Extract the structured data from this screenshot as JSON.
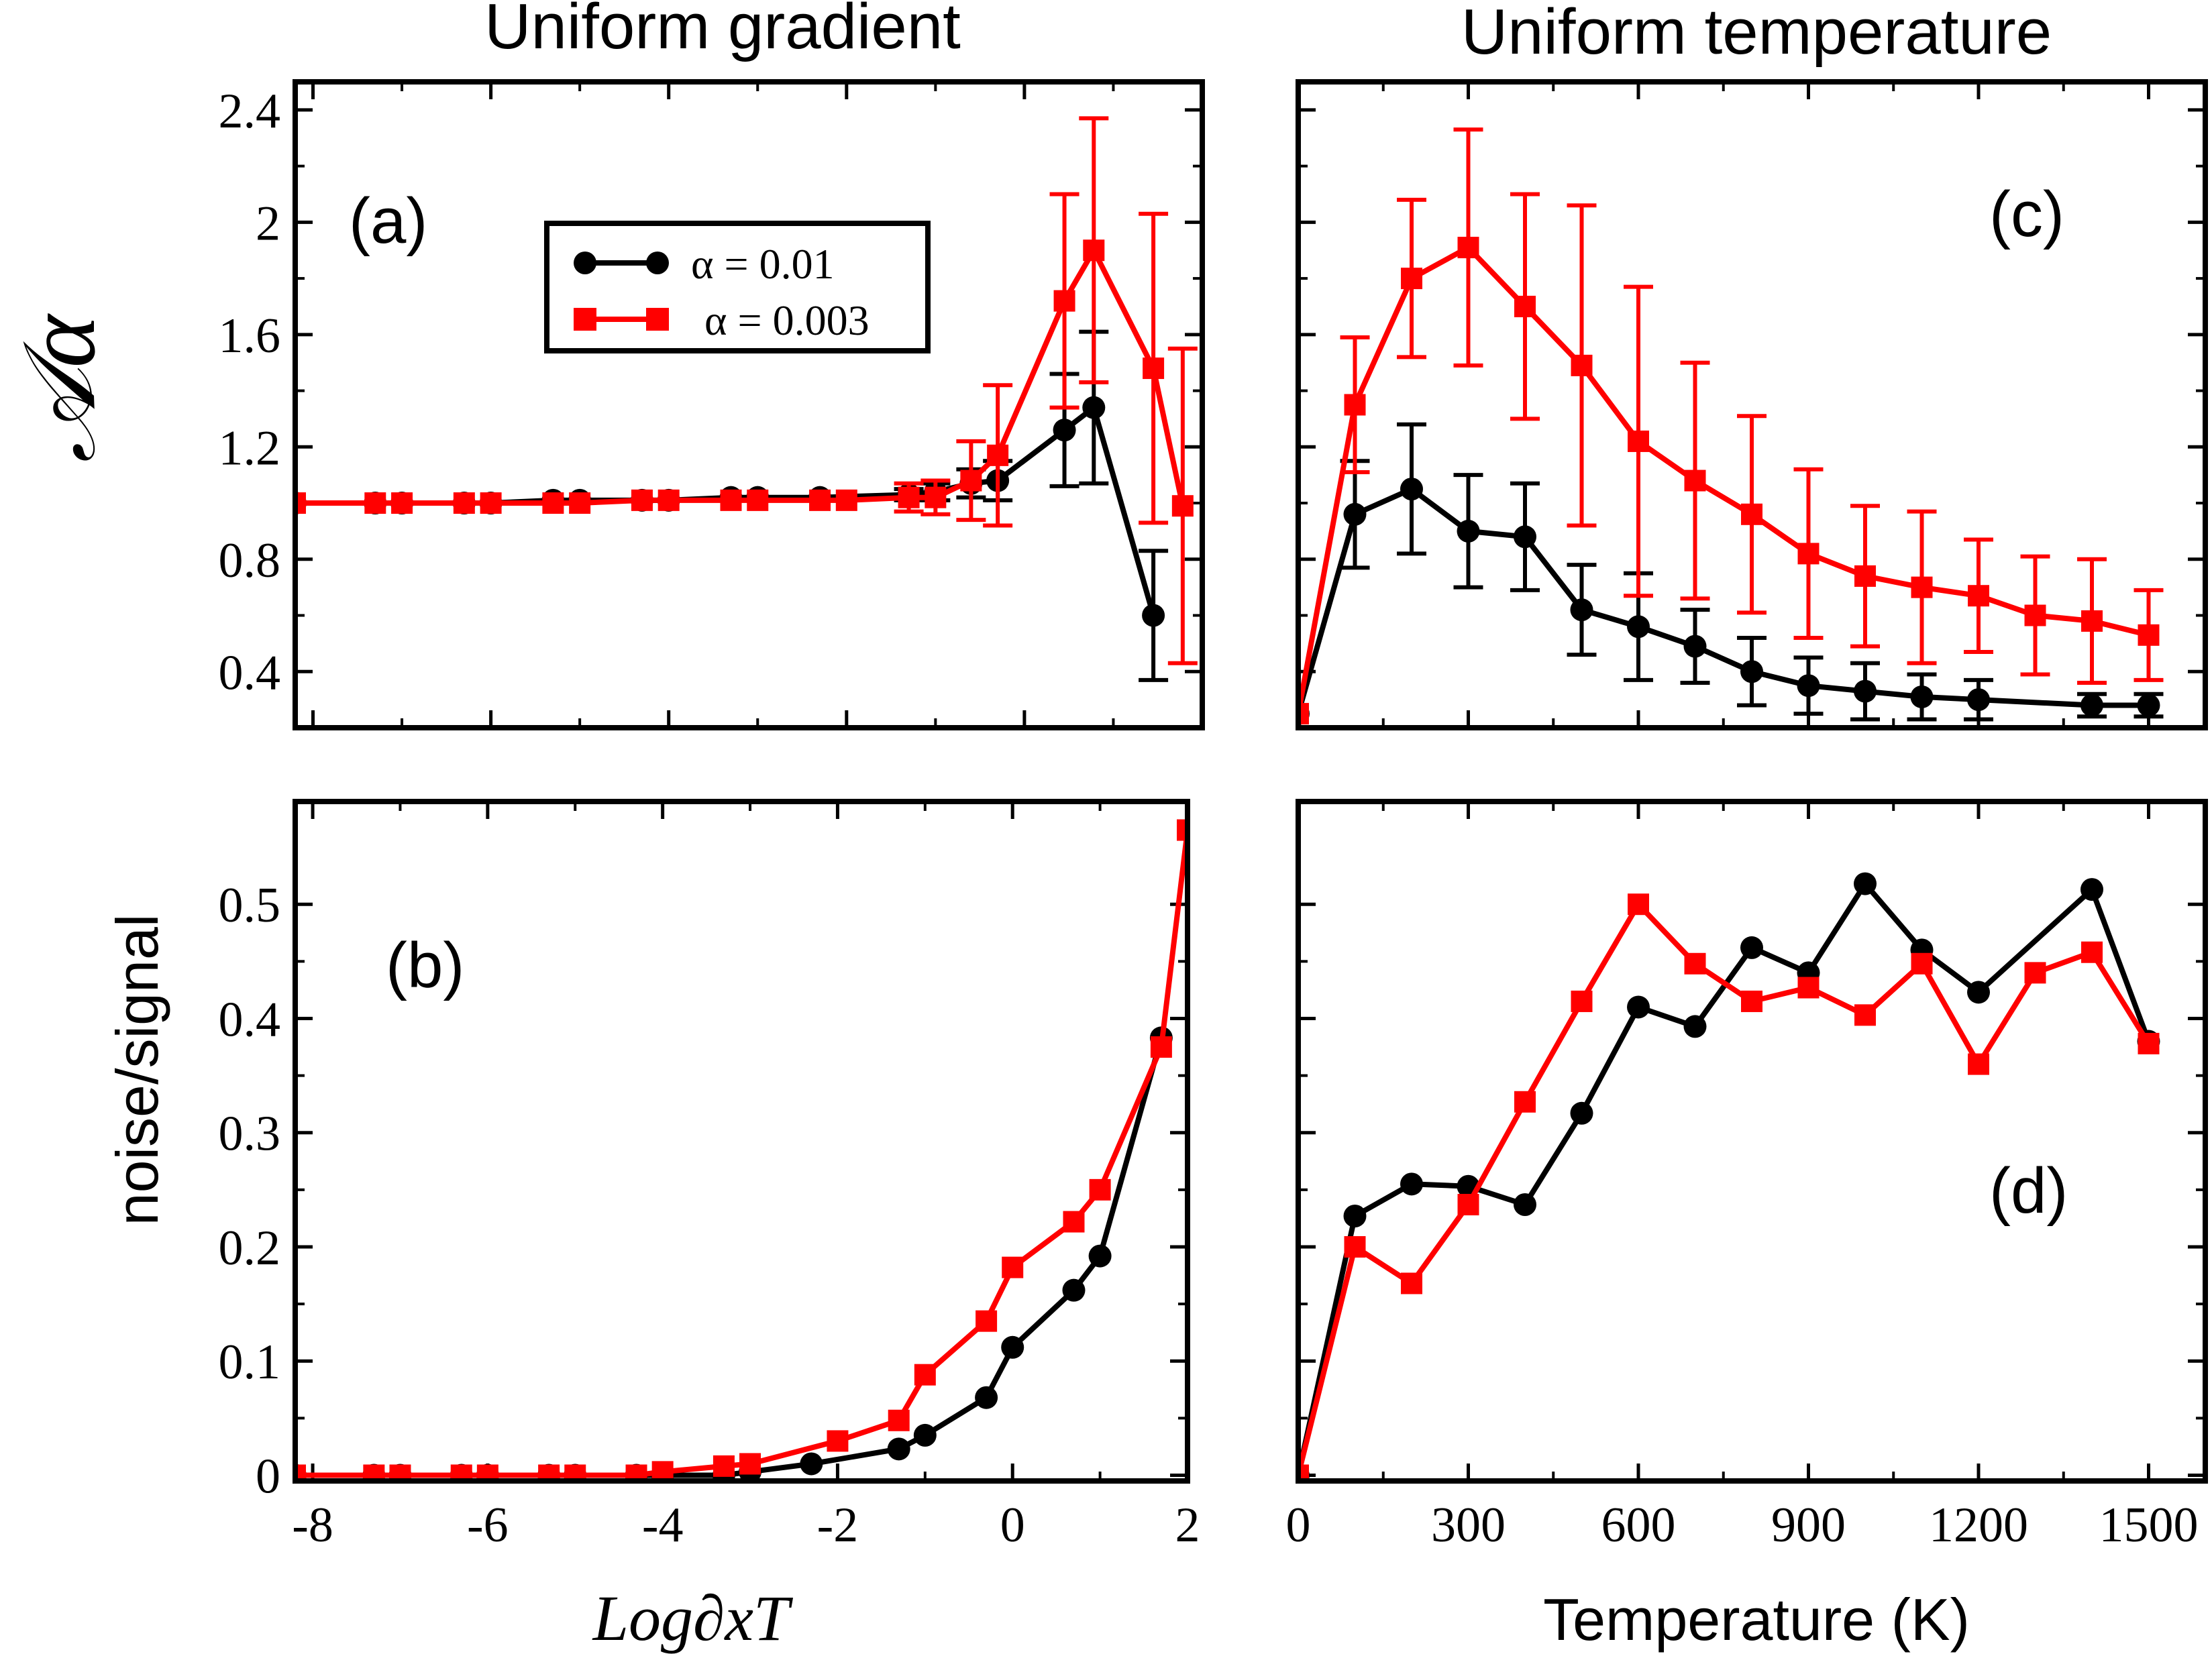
{
  "colors": {
    "series_a": "#000000",
    "series_b": "#ff0000",
    "frame": "#000000"
  },
  "column_titles": {
    "left": "Uniform gradient",
    "right": "Uniform temperature"
  },
  "axis_labels": {
    "y_top": "𝒜α",
    "y_bottom": "noise/signal",
    "x_left": "Log∂xT",
    "x_right": "Temperature (K)"
  },
  "legend": {
    "entries": [
      "α = 0.01",
      "α = 0.003"
    ]
  },
  "chart_data": [
    {
      "id": "a",
      "panel_label": "(a)",
      "type": "line",
      "xlim": [
        -8.2,
        2.0
      ],
      "ylim": [
        0.2,
        2.5
      ],
      "xticks": [
        -8,
        -6,
        -4,
        -2,
        0,
        2
      ],
      "xtick_labels": [],
      "yticks": [
        0.4,
        0.8,
        1.2,
        1.6,
        2.0,
        2.4
      ],
      "ytick_labels": [
        "0.4",
        "0.8",
        "1.2",
        "1.6",
        "2",
        "2.4"
      ],
      "series": [
        {
          "name": "α = 0.01",
          "marker": "circle",
          "x": [
            -8.2,
            -7.3,
            -7.0,
            -6.3,
            -6.0,
            -5.3,
            -5.0,
            -4.3,
            -4.0,
            -3.3,
            -3.0,
            -2.3,
            -1.3,
            -1.0,
            -0.6,
            -0.3,
            0.45,
            0.78,
            1.45
          ],
          "y": [
            1.0,
            1.0,
            1.0,
            1.0,
            1.0,
            1.01,
            1.01,
            1.01,
            1.01,
            1.02,
            1.02,
            1.02,
            1.03,
            1.04,
            1.07,
            1.08,
            1.26,
            1.34,
            0.6
          ],
          "err": [
            0,
            0,
            0,
            0,
            0,
            0,
            0,
            0,
            0,
            0,
            0,
            0,
            0.02,
            0.03,
            0.05,
            0.07,
            0.2,
            0.27,
            0.23
          ]
        },
        {
          "name": "α = 0.003",
          "marker": "square",
          "x": [
            -8.2,
            -7.3,
            -7.0,
            -6.3,
            -6.0,
            -5.3,
            -5.0,
            -4.3,
            -4.0,
            -3.3,
            -3.0,
            -2.3,
            -2.0,
            -1.3,
            -1.0,
            -0.6,
            -0.3,
            0.45,
            0.78,
            1.45,
            1.78
          ],
          "y": [
            1.0,
            1.0,
            1.0,
            1.0,
            1.0,
            1.0,
            1.0,
            1.01,
            1.01,
            1.01,
            1.01,
            1.01,
            1.01,
            1.02,
            1.02,
            1.08,
            1.17,
            1.72,
            1.9,
            1.48,
            0.99
          ],
          "err": [
            0,
            0,
            0,
            0,
            0,
            0,
            0,
            0,
            0,
            0,
            0,
            0,
            0,
            0.05,
            0.06,
            0.14,
            0.25,
            0.38,
            0.47,
            0.55,
            0.56
          ]
        }
      ]
    },
    {
      "id": "b",
      "panel_label": "(b)",
      "type": "line",
      "xlim": [
        -8.2,
        2.0
      ],
      "ylim": [
        -0.005,
        0.59
      ],
      "xticks": [
        -8,
        -6,
        -4,
        -2,
        0,
        2
      ],
      "xtick_labels": [
        "-8",
        "-6",
        "-4",
        "-2",
        "0",
        "2"
      ],
      "yticks": [
        0,
        0.1,
        0.2,
        0.3,
        0.4,
        0.5
      ],
      "ytick_labels": [
        "0",
        "0.1",
        "0.2",
        "0.3",
        "0.4",
        "0.5"
      ],
      "series": [
        {
          "name": "α = 0.01",
          "marker": "circle",
          "x": [
            -8.2,
            -7.3,
            -7.0,
            -6.3,
            -6.0,
            -5.3,
            -5.0,
            -4.3,
            -4.0,
            -3.3,
            -3.0,
            -2.3,
            -1.3,
            -1.0,
            -0.3,
            0.0,
            0.7,
            1.0,
            1.7
          ],
          "y": [
            0.0,
            0.0,
            0.0,
            0.0,
            0.0,
            0.0,
            0.0,
            0.0,
            0.0,
            0.0,
            0.003,
            0.01,
            0.023,
            0.035,
            0.068,
            0.112,
            0.162,
            0.192,
            0.383
          ]
        },
        {
          "name": "α = 0.003",
          "marker": "square",
          "x": [
            -8.2,
            -7.3,
            -7.0,
            -6.3,
            -6.0,
            -5.3,
            -5.0,
            -4.3,
            -4.0,
            -3.3,
            -3.0,
            -2.0,
            -1.3,
            -1.0,
            -0.3,
            0.0,
            0.7,
            1.0,
            1.7,
            2.0
          ],
          "y": [
            0.0,
            0.0,
            0.0,
            0.0,
            0.0,
            0.0,
            0.0,
            0.0,
            0.003,
            0.008,
            0.01,
            0.03,
            0.048,
            0.088,
            0.135,
            0.182,
            0.222,
            0.25,
            0.375,
            0.565
          ]
        }
      ]
    },
    {
      "id": "c",
      "panel_label": "(c)",
      "type": "line",
      "xlim": [
        0,
        1600
      ],
      "ylim": [
        0.2,
        2.5
      ],
      "xticks": [
        0,
        300,
        600,
        900,
        1200,
        1500
      ],
      "xtick_labels": [],
      "yticks": [
        0.4,
        0.8,
        1.2,
        1.6,
        2.0,
        2.4
      ],
      "ytick_labels": [],
      "series": [
        {
          "name": "α = 0.01",
          "marker": "circle",
          "x": [
            0,
            100,
            200,
            300,
            400,
            500,
            600,
            700,
            800,
            900,
            1000,
            1100,
            1200,
            1400,
            1500
          ],
          "y": [
            0.25,
            0.96,
            1.05,
            0.9,
            0.88,
            0.62,
            0.56,
            0.49,
            0.4,
            0.35,
            0.33,
            0.31,
            0.3,
            0.28,
            0.28
          ],
          "err": [
            0,
            0.19,
            0.23,
            0.2,
            0.19,
            0.16,
            0.19,
            0.13,
            0.12,
            0.1,
            0.1,
            0.08,
            0.07,
            0.04,
            0.04
          ]
        },
        {
          "name": "α = 0.003",
          "marker": "square",
          "x": [
            0,
            100,
            200,
            300,
            400,
            500,
            600,
            700,
            800,
            900,
            1000,
            1100,
            1200,
            1300,
            1400,
            1500
          ],
          "y": [
            0.25,
            1.35,
            1.8,
            1.91,
            1.7,
            1.49,
            1.22,
            1.08,
            0.96,
            0.82,
            0.74,
            0.7,
            0.67,
            0.6,
            0.58,
            0.53
          ],
          "err": [
            0,
            0.24,
            0.28,
            0.42,
            0.4,
            0.57,
            0.55,
            0.42,
            0.35,
            0.3,
            0.25,
            0.27,
            0.2,
            0.21,
            0.22,
            0.16
          ]
        }
      ]
    },
    {
      "id": "d",
      "panel_label": "(d)",
      "type": "line",
      "xlim": [
        0,
        1600
      ],
      "ylim": [
        -0.005,
        0.59
      ],
      "xticks": [
        0,
        300,
        600,
        900,
        1200,
        1500
      ],
      "xtick_labels": [
        "0",
        "300",
        "600",
        "900",
        "1200",
        "1500"
      ],
      "yticks": [
        0,
        0.1,
        0.2,
        0.3,
        0.4,
        0.5
      ],
      "ytick_labels": [],
      "series": [
        {
          "name": "α = 0.01",
          "marker": "circle",
          "x": [
            0,
            100,
            200,
            300,
            400,
            500,
            600,
            700,
            800,
            900,
            1000,
            1100,
            1200,
            1400,
            1500
          ],
          "y": [
            0.0,
            0.227,
            0.255,
            0.253,
            0.237,
            0.317,
            0.41,
            0.393,
            0.462,
            0.44,
            0.518,
            0.46,
            0.423,
            0.513,
            0.38
          ]
        },
        {
          "name": "α = 0.003",
          "marker": "square",
          "x": [
            0,
            100,
            200,
            300,
            400,
            500,
            600,
            700,
            800,
            900,
            1000,
            1100,
            1200,
            1300,
            1400,
            1500
          ],
          "y": [
            0.0,
            0.2,
            0.168,
            0.237,
            0.327,
            0.415,
            0.5,
            0.448,
            0.415,
            0.427,
            0.403,
            0.448,
            0.36,
            0.44,
            0.458,
            0.378
          ]
        }
      ]
    }
  ]
}
